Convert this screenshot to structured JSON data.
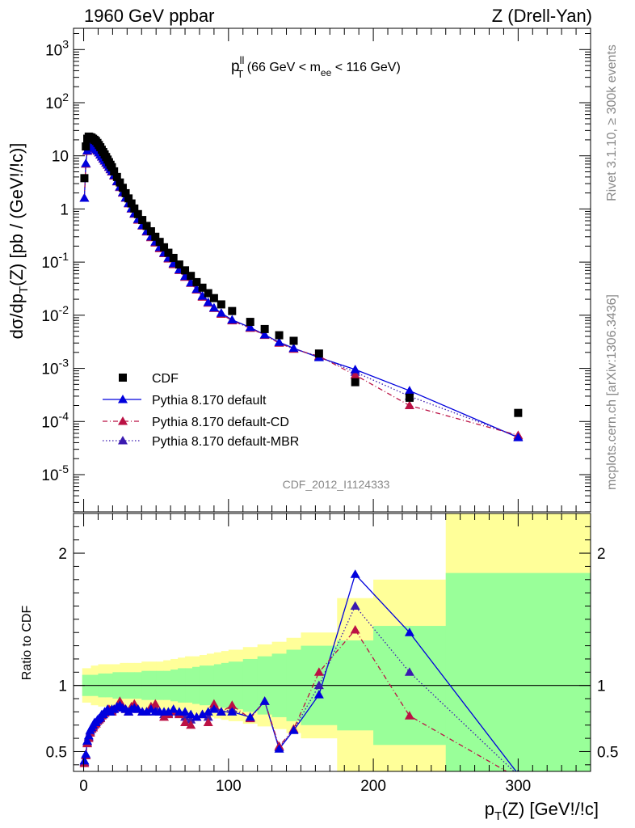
{
  "header": {
    "left": "1960 GeV ppbar",
    "right": "Z (Drell-Yan)"
  },
  "side_labels": {
    "rivet": "Rivet 3.1.10, ≥ 300k events",
    "mcplots": "mcplots.cern.ch [arXiv:1306.3436]"
  },
  "chart_data": [
    {
      "type": "scatter",
      "title": "p_T^ll (66 GeV < m_ee < 116 GeV)",
      "title_parts": {
        "p": "p",
        "sup": "ll",
        "sub": "T",
        "pre": " (66 GeV < m",
        "sub2": "ee",
        "post": " < 116 GeV)"
      },
      "ylabel": "dσ/dp_T(Z) [pb / (GeV!/!c)]",
      "ylabel_parts": {
        "a": "dσ/dp",
        "sub": "T",
        "b": "(Z) [pb / (GeV!/!c)]"
      },
      "analysis_label": "CDF_2012_I1124333",
      "xlim": [
        -7,
        350
      ],
      "ylim_log10": [
        -5.7,
        3.4
      ],
      "log_y": true,
      "y_tick_labels": [
        "10^-5",
        "10^-4",
        "10^-3",
        "10^-2",
        "10^-1",
        "1",
        "10",
        "10^2",
        "10^3"
      ],
      "legend_position": "bottom-left",
      "series": [
        {
          "name": "CDF",
          "color": "#000000",
          "marker": "square",
          "x": [
            0.5,
            1.5,
            2.5,
            3.5,
            4.5,
            5.5,
            6.5,
            7.5,
            8.5,
            9.5,
            10.5,
            11.5,
            12.5,
            13.5,
            14.5,
            15.5,
            16.5,
            17.5,
            18.5,
            19.5,
            21,
            23,
            25,
            27,
            29,
            31,
            33,
            35,
            37.5,
            40.5,
            43.5,
            46.5,
            49.5,
            52.5,
            55.5,
            58.5,
            62,
            66,
            70,
            74,
            78,
            82,
            86,
            90,
            95,
            102.5,
            115,
            125,
            135,
            145,
            162.5,
            187.5,
            225,
            300
          ],
          "y": [
            3.8,
            15,
            21,
            23,
            22.5,
            22,
            21,
            20,
            19,
            17.5,
            16,
            14.5,
            13,
            11.8,
            10.6,
            9.5,
            8.5,
            7.6,
            6.8,
            6.1,
            5.1,
            4.0,
            3.15,
            2.5,
            1.98,
            1.58,
            1.27,
            1.02,
            0.8,
            0.62,
            0.48,
            0.38,
            0.3,
            0.24,
            0.19,
            0.15,
            0.12,
            0.09,
            0.07,
            0.055,
            0.042,
            0.033,
            0.026,
            0.021,
            0.016,
            0.012,
            0.0075,
            0.0055,
            0.0042,
            0.0033,
            0.0019,
            0.00055,
            0.00028,
            0.000145
          ]
        },
        {
          "name": "Pythia 8.170 default",
          "color": "#0000dd",
          "marker": "triangle",
          "line": "solid",
          "x": [
            0.5,
            1.5,
            2.5,
            3.5,
            4.5,
            5.5,
            6.5,
            7.5,
            8.5,
            9.5,
            10.5,
            11.5,
            12.5,
            13.5,
            14.5,
            15.5,
            16.5,
            17.5,
            18.5,
            19.5,
            21,
            23,
            25,
            27,
            29,
            31,
            33,
            35,
            37.5,
            40.5,
            43.5,
            46.5,
            49.5,
            52.5,
            55.5,
            58.5,
            62,
            66,
            70,
            74,
            78,
            82,
            86,
            90,
            95,
            102.5,
            115,
            125,
            135,
            145,
            162.5,
            187.5,
            225,
            300
          ],
          "y": [
            1.6,
            7.2,
            12.5,
            14.5,
            15,
            15,
            14.5,
            14,
            13.2,
            12.5,
            11.5,
            10.5,
            9.6,
            8.8,
            8.1,
            7.4,
            6.8,
            6.2,
            5.6,
            5.1,
            4.3,
            3.3,
            2.6,
            2.05,
            1.62,
            1.28,
            1.02,
            0.82,
            0.64,
            0.49,
            0.38,
            0.3,
            0.24,
            0.19,
            0.15,
            0.12,
            0.094,
            0.072,
            0.054,
            0.041,
            0.031,
            0.023,
            0.0175,
            0.0138,
            0.011,
            0.0082,
            0.0059,
            0.0043,
            0.0031,
            0.0024,
            0.0016,
            0.00095,
            0.00038,
            5e-05
          ],
          "ratio": [
            0.43,
            0.48,
            0.58,
            0.62,
            0.66,
            0.68,
            0.7,
            0.72,
            0.72,
            0.74,
            0.75,
            0.76,
            0.78,
            0.78,
            0.8,
            0.8,
            0.82,
            0.8,
            0.8,
            0.82,
            0.82,
            0.84,
            0.85,
            0.83,
            0.82,
            0.8,
            0.82,
            0.83,
            0.82,
            0.8,
            0.8,
            0.82,
            0.8,
            0.8,
            0.8,
            0.8,
            0.82,
            0.8,
            0.8,
            0.78,
            0.76,
            0.78,
            0.8,
            0.82,
            0.8,
            0.8,
            0.76,
            0.88,
            0.52,
            0.66,
            0.93,
            1.84,
            1.4,
            0.33
          ]
        },
        {
          "name": "Pythia 8.170 default-CD",
          "color": "#bb1144",
          "marker": "triangle",
          "line": "dashdot",
          "x": [
            0.5,
            1.5,
            2.5,
            3.5,
            4.5,
            5.5,
            6.5,
            7.5,
            8.5,
            9.5,
            10.5,
            11.5,
            12.5,
            13.5,
            14.5,
            15.5,
            16.5,
            17.5,
            18.5,
            19.5,
            21,
            23,
            25,
            27,
            29,
            31,
            33,
            35,
            37.5,
            40.5,
            43.5,
            46.5,
            49.5,
            52.5,
            55.5,
            58.5,
            62,
            66,
            70,
            74,
            78,
            82,
            86,
            90,
            95,
            102.5,
            115,
            125,
            135,
            145,
            162.5,
            187.5,
            225,
            300
          ],
          "y": [
            1.6,
            7.0,
            12.2,
            14.2,
            14.8,
            14.8,
            14.3,
            13.8,
            13.0,
            12.3,
            11.4,
            10.4,
            9.5,
            8.7,
            8.0,
            7.3,
            6.7,
            6.1,
            5.5,
            5.0,
            4.2,
            3.25,
            2.55,
            2.0,
            1.6,
            1.26,
            1.0,
            0.8,
            0.62,
            0.48,
            0.37,
            0.29,
            0.23,
            0.18,
            0.145,
            0.115,
            0.09,
            0.07,
            0.052,
            0.04,
            0.03,
            0.022,
            0.017,
            0.0135,
            0.0105,
            0.0079,
            0.0057,
            0.0042,
            0.003,
            0.0023,
            0.0017,
            0.00075,
            0.0002,
            5.5e-05
          ],
          "ratio": [
            0.41,
            0.47,
            0.56,
            0.6,
            0.64,
            0.67,
            0.68,
            0.7,
            0.71,
            0.73,
            0.74,
            0.75,
            0.77,
            0.78,
            0.79,
            0.8,
            0.8,
            0.82,
            0.81,
            0.8,
            0.82,
            0.83,
            0.88,
            0.84,
            0.82,
            0.8,
            0.84,
            0.86,
            0.82,
            0.8,
            0.8,
            0.84,
            0.86,
            0.8,
            0.76,
            0.78,
            0.8,
            0.78,
            0.72,
            0.7,
            0.76,
            0.78,
            0.72,
            0.86,
            0.8,
            0.85,
            0.75,
            0.88,
            0.54,
            0.67,
            1.1,
            1.42,
            0.77,
            0.3
          ]
        },
        {
          "name": "Pythia 8.170 default-MBR",
          "color": "#3a1ab0",
          "marker": "triangle",
          "line": "dotted",
          "x": [
            0.5,
            1.5,
            2.5,
            3.5,
            4.5,
            5.5,
            6.5,
            7.5,
            8.5,
            9.5,
            10.5,
            11.5,
            12.5,
            13.5,
            14.5,
            15.5,
            16.5,
            17.5,
            18.5,
            19.5,
            21,
            23,
            25,
            27,
            29,
            31,
            33,
            35,
            37.5,
            40.5,
            43.5,
            46.5,
            49.5,
            52.5,
            55.5,
            58.5,
            62,
            66,
            70,
            74,
            78,
            82,
            86,
            90,
            95,
            102.5,
            115,
            125,
            135,
            145,
            162.5,
            187.5,
            225,
            300
          ],
          "y": [
            1.6,
            7.1,
            12.4,
            14.4,
            14.9,
            14.9,
            14.4,
            13.9,
            13.1,
            12.4,
            11.45,
            10.45,
            9.55,
            8.75,
            8.05,
            7.35,
            6.75,
            6.15,
            5.55,
            5.05,
            4.25,
            3.28,
            2.58,
            2.03,
            1.61,
            1.27,
            1.01,
            0.81,
            0.63,
            0.485,
            0.375,
            0.295,
            0.235,
            0.185,
            0.148,
            0.118,
            0.092,
            0.071,
            0.053,
            0.0405,
            0.0305,
            0.0225,
            0.0172,
            0.0136,
            0.0107,
            0.008,
            0.0058,
            0.00425,
            0.00305,
            0.00235,
            0.00165,
            0.00085,
            0.0003,
            5.2e-05
          ],
          "ratio": [
            0.42,
            0.47,
            0.57,
            0.61,
            0.65,
            0.67,
            0.69,
            0.71,
            0.72,
            0.73,
            0.745,
            0.755,
            0.775,
            0.78,
            0.795,
            0.8,
            0.81,
            0.81,
            0.805,
            0.81,
            0.82,
            0.835,
            0.865,
            0.835,
            0.82,
            0.8,
            0.83,
            0.845,
            0.82,
            0.8,
            0.8,
            0.83,
            0.83,
            0.8,
            0.78,
            0.79,
            0.81,
            0.79,
            0.76,
            0.74,
            0.76,
            0.78,
            0.76,
            0.84,
            0.8,
            0.82,
            0.755,
            0.88,
            0.53,
            0.665,
            1.0,
            1.6,
            1.1,
            0.32
          ]
        }
      ]
    },
    {
      "type": "line",
      "ylabel": "Ratio to CDF",
      "xlabel": "p_T(Z) [GeV!/!c]",
      "xlabel_parts": {
        "a": "p",
        "sub": "T",
        "b": "(Z) [GeV!/!c]"
      },
      "xlim": [
        -7,
        350
      ],
      "ylim": [
        0.35,
        2.3
      ],
      "x_tick_labels": [
        "0",
        "100",
        "200",
        "300"
      ],
      "y_tick_labels": [
        "0.5",
        "1",
        "2"
      ],
      "reference_line": 1,
      "uncertainty_bands": {
        "edges": [
          -1,
          5,
          10,
          15,
          20,
          25,
          30,
          35,
          40,
          45,
          50,
          55,
          60,
          65,
          70,
          75,
          80,
          85,
          90,
          95,
          100,
          110,
          120,
          130,
          140,
          150,
          175,
          200,
          250,
          350
        ],
        "outer": [
          0.13,
          0.15,
          0.16,
          0.16,
          0.16,
          0.17,
          0.17,
          0.17,
          0.18,
          0.18,
          0.18,
          0.19,
          0.2,
          0.21,
          0.22,
          0.22,
          0.23,
          0.24,
          0.25,
          0.26,
          0.27,
          0.29,
          0.31,
          0.33,
          0.36,
          0.4,
          0.66,
          0.8,
          1.3
        ],
        "inner": [
          0.08,
          0.08,
          0.09,
          0.09,
          0.1,
          0.1,
          0.1,
          0.1,
          0.11,
          0.11,
          0.11,
          0.11,
          0.12,
          0.13,
          0.13,
          0.14,
          0.15,
          0.15,
          0.16,
          0.17,
          0.18,
          0.2,
          0.22,
          0.24,
          0.27,
          0.3,
          0.34,
          0.45,
          0.85
        ]
      }
    }
  ]
}
